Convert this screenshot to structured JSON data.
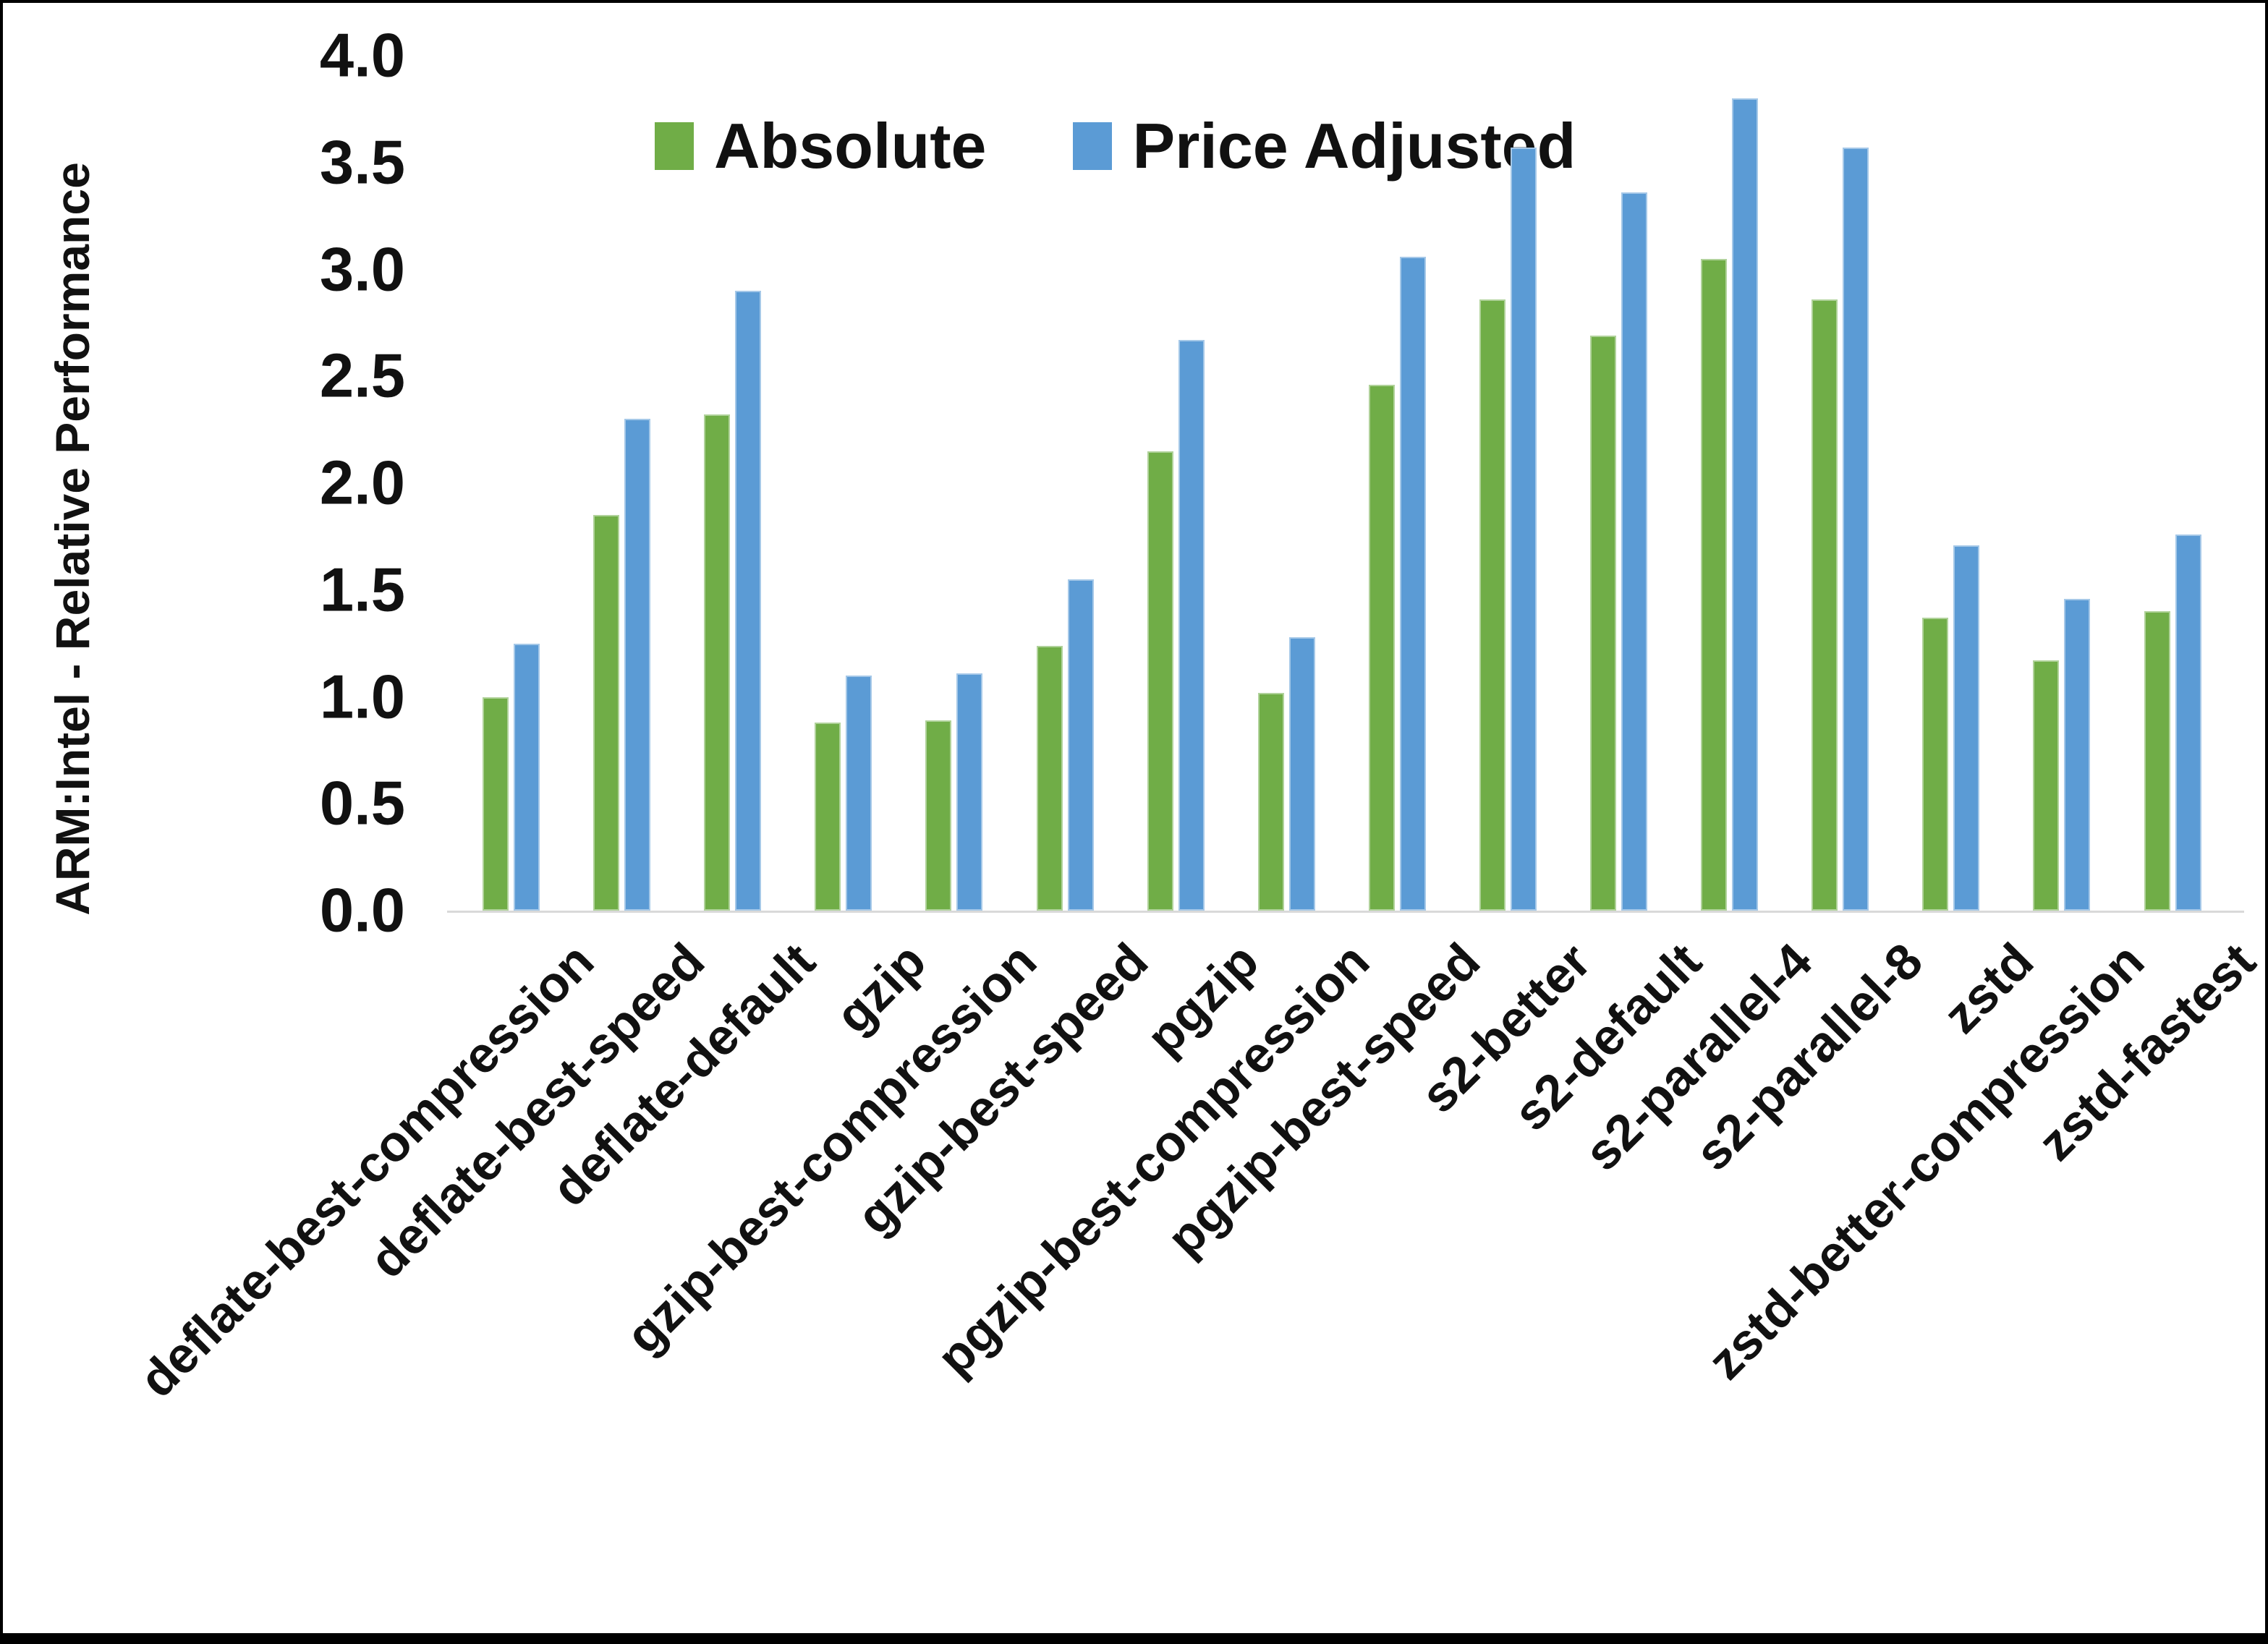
{
  "y_axis_title": "ARM:Intel - Relative Performance",
  "chart_data": {
    "type": "bar",
    "title": "",
    "y_axis_title": "ARM:Intel - Relative Performance",
    "categories": [
      "deflate-best-compression",
      "deflate-best-speed",
      "deflate-default",
      "gzip",
      "gzip-best-compression",
      "gzip-best-speed",
      "pgzip",
      "pgzip-best-compression",
      "pgzip-best-speed",
      "s2-better",
      "s2-default",
      "s2-parallel-4",
      "s2-parallel-8",
      "zstd",
      "zstd-better-compression",
      "zstd-fastest"
    ],
    "series": [
      {
        "name": "Absolute",
        "color": "#70AD47",
        "values": [
          1.0,
          1.85,
          2.32,
          0.88,
          0.89,
          1.24,
          2.15,
          1.02,
          2.46,
          2.86,
          2.69,
          3.05,
          2.86,
          1.37,
          1.17,
          1.4
        ]
      },
      {
        "name": "Price Adjusted",
        "color": "#5B9BD5",
        "values": [
          1.25,
          2.3,
          2.9,
          1.1,
          1.11,
          1.55,
          2.67,
          1.28,
          3.06,
          3.57,
          3.36,
          3.8,
          3.57,
          1.71,
          1.46,
          1.76
        ]
      }
    ],
    "ylim": [
      0.0,
      4.0
    ],
    "ytick_step": 0.5,
    "ytick_labels": [
      "0.0",
      "0.5",
      "1.0",
      "1.5",
      "2.0",
      "2.5",
      "3.0",
      "3.5",
      "4.0"
    ],
    "grid": false,
    "legend_position": "top-center",
    "axis_line_color": "#D9D9D9",
    "frame_color": "#000000"
  }
}
